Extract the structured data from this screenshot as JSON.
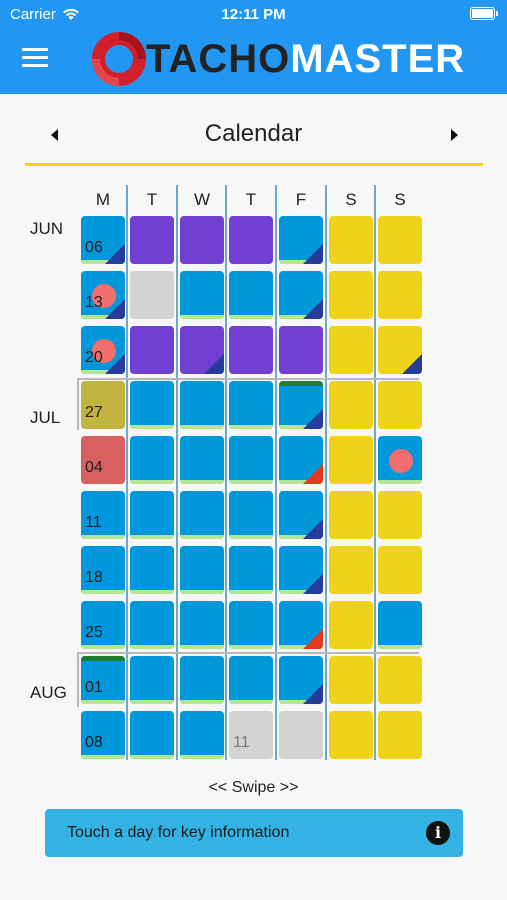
{
  "status": {
    "carrier": "Carrier",
    "time": "12:11 PM"
  },
  "app": {
    "logo_dark": "TACHO",
    "logo_light": "MASTER",
    "brand_color": "#2196f3"
  },
  "calendar": {
    "title": "Calendar",
    "weekdays": [
      "M",
      "T",
      "W",
      "T",
      "F",
      "S",
      "S"
    ],
    "months": [
      "JUN",
      "JUL",
      "AUG"
    ],
    "legend_colors": {
      "drive": "#0098da",
      "rest": "#723fd3",
      "weekend": "#efd31a",
      "unavailable": "#d3d3d3",
      "holiday": "#c1b43f",
      "sick": "#d86061"
    },
    "weeks": [
      [
        "06",
        "",
        "",
        "",
        "",
        "",
        ""
      ],
      [
        "13",
        "",
        "",
        "",
        "",
        "",
        ""
      ],
      [
        "20",
        "",
        "",
        "",
        "",
        "",
        ""
      ],
      [
        "27",
        "",
        "",
        "",
        "",
        "",
        ""
      ],
      [
        "04",
        "",
        "",
        "",
        "",
        "",
        ""
      ],
      [
        "11",
        "",
        "",
        "",
        "",
        "",
        ""
      ],
      [
        "18",
        "",
        "",
        "",
        "",
        "",
        ""
      ],
      [
        "25",
        "",
        "",
        "",
        "",
        "",
        ""
      ],
      [
        "01",
        "",
        "",
        "",
        "",
        "",
        ""
      ],
      [
        "08",
        "",
        "",
        "11",
        "",
        "",
        ""
      ]
    ]
  },
  "footer": {
    "swipe_hint": "<< Swipe >>",
    "info_text": "Touch a day for key information",
    "info_icon": "info-icon"
  }
}
